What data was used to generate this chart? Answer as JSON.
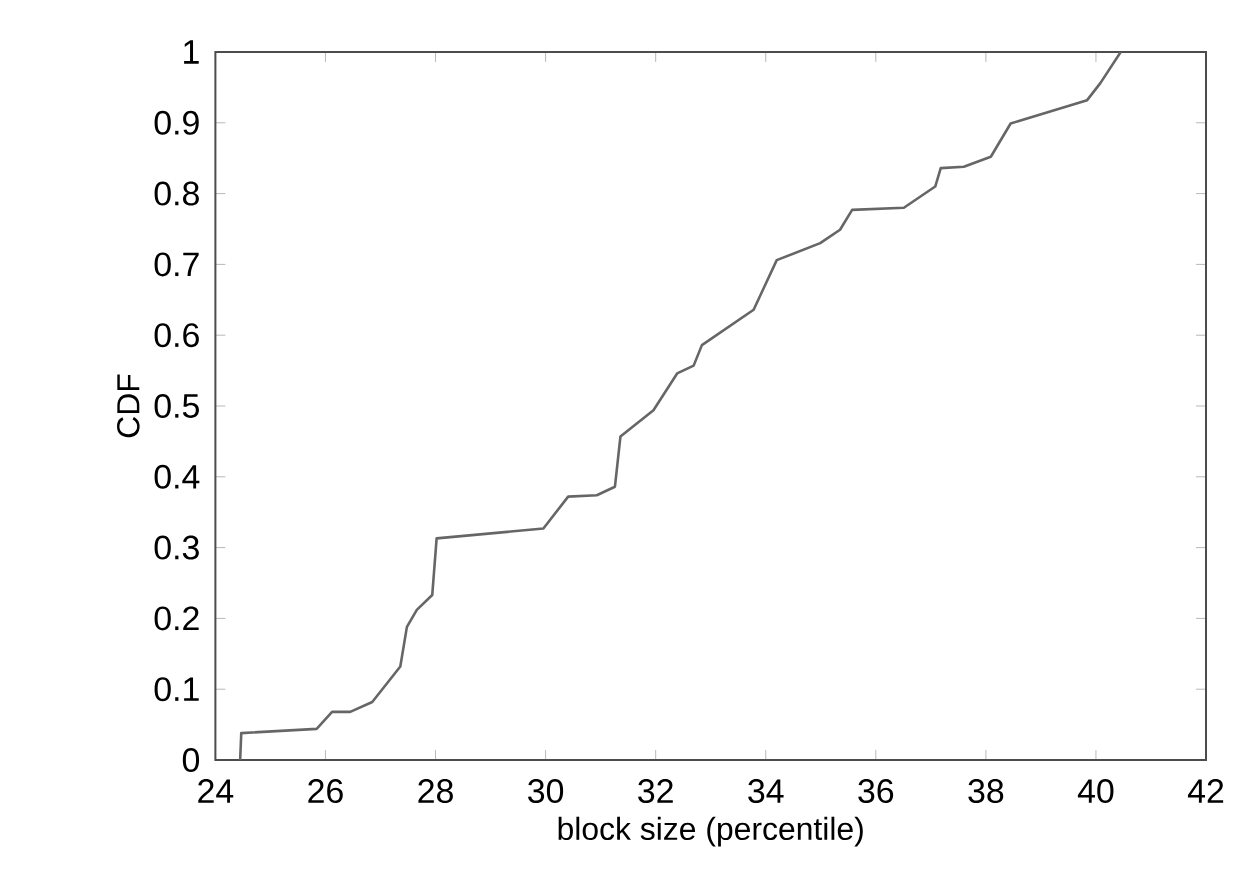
{
  "chart_data": {
    "type": "line",
    "xlabel": "block size (percentile)",
    "ylabel": "CDF",
    "xlim": [
      24,
      42
    ],
    "xticks": [
      24,
      26,
      28,
      30,
      32,
      34,
      36,
      38,
      40,
      42
    ],
    "ylim": [
      0,
      1
    ],
    "yticks": [
      0,
      0.1,
      0.2,
      0.3,
      0.4,
      0.5,
      0.6,
      0.7,
      0.8,
      0.9,
      1
    ],
    "grid": false,
    "series": [
      {
        "color": "#666666",
        "line_style": "solid",
        "x": [
          24.45,
          24.47,
          25.84,
          26.12,
          26.45,
          26.85,
          27.36,
          27.48,
          27.66,
          27.94,
          28.02,
          29.96,
          30.41,
          30.93,
          31.26,
          31.36,
          31.96,
          32.39,
          32.69,
          32.84,
          33.78,
          34.2,
          34.99,
          35.35,
          35.57,
          36.51,
          37.08,
          37.18,
          37.6,
          38.09,
          38.45,
          39.84,
          40.08,
          40.45
        ],
        "values": [
          0,
          0.038,
          0.044,
          0.068,
          0.068,
          0.082,
          0.132,
          0.188,
          0.212,
          0.233,
          0.313,
          0.327,
          0.372,
          0.374,
          0.386,
          0.457,
          0.494,
          0.546,
          0.557,
          0.586,
          0.636,
          0.706,
          0.73,
          0.749,
          0.777,
          0.78,
          0.81,
          0.836,
          0.838,
          0.852,
          0.899,
          0.932,
          0.956,
          1.0
        ]
      }
    ]
  }
}
